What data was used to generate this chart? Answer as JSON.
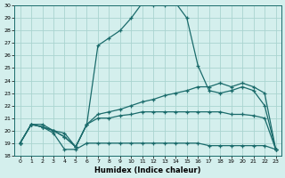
{
  "xlabel": "Humidex (Indice chaleur)",
  "bg_color": "#d4efed",
  "grid_color": "#aad4d0",
  "line_color": "#1a6b6b",
  "xlim": [
    -0.5,
    23.5
  ],
  "ylim": [
    18,
    30
  ],
  "xticks": [
    0,
    1,
    2,
    3,
    4,
    5,
    6,
    7,
    8,
    9,
    10,
    11,
    12,
    13,
    14,
    15,
    16,
    17,
    18,
    19,
    20,
    21,
    22,
    23
  ],
  "yticks": [
    18,
    19,
    20,
    21,
    22,
    23,
    24,
    25,
    26,
    27,
    28,
    29,
    30
  ],
  "series": [
    [
      19.0,
      20.5,
      20.5,
      20.0,
      19.8,
      18.7,
      20.5,
      26.8,
      27.4,
      28.0,
      29.0,
      30.2,
      30.0,
      30.0,
      30.2,
      29.0,
      25.2,
      23.2,
      23.0,
      23.2,
      23.5,
      23.2,
      22.0,
      18.5
    ],
    [
      19.0,
      20.5,
      20.3,
      20.0,
      19.5,
      18.7,
      20.5,
      21.3,
      21.5,
      21.7,
      22.0,
      22.3,
      22.5,
      22.8,
      23.0,
      23.2,
      23.5,
      23.5,
      23.8,
      23.5,
      23.8,
      23.5,
      23.0,
      18.5
    ],
    [
      19.0,
      20.5,
      20.3,
      20.0,
      19.5,
      18.7,
      20.5,
      21.0,
      21.0,
      21.2,
      21.3,
      21.5,
      21.5,
      21.5,
      21.5,
      21.5,
      21.5,
      21.5,
      21.5,
      21.3,
      21.3,
      21.2,
      21.0,
      18.5
    ],
    [
      19.0,
      20.5,
      20.3,
      19.8,
      18.5,
      18.5,
      19.0,
      19.0,
      19.0,
      19.0,
      19.0,
      19.0,
      19.0,
      19.0,
      19.0,
      19.0,
      19.0,
      18.8,
      18.8,
      18.8,
      18.8,
      18.8,
      18.8,
      18.5
    ]
  ]
}
